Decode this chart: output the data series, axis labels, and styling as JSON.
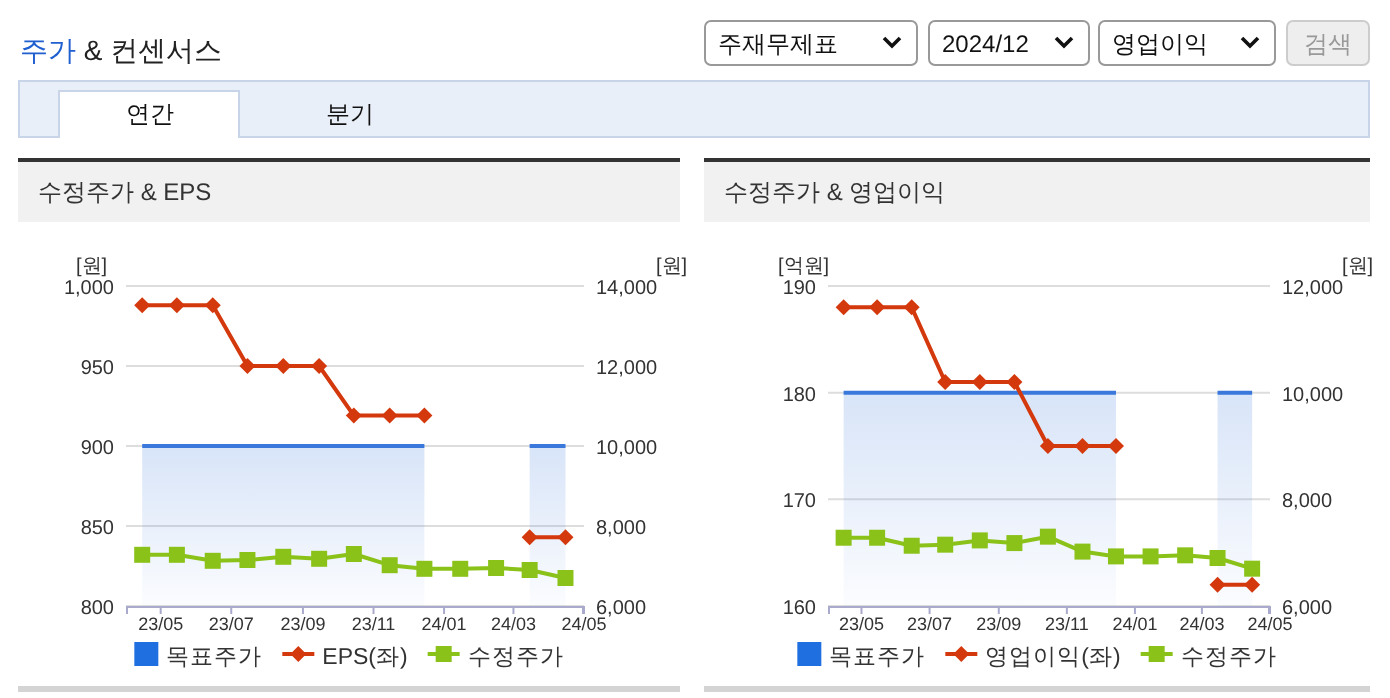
{
  "chart_data": [
    {
      "type": "line",
      "title": "수정주가 & EPS",
      "ylabel": "[원]",
      "y2label": "[원]",
      "annotations": [
        "주가 & 컨센서스",
        "주재무제표",
        "2024/12",
        "영업이익",
        "검색",
        "연간",
        "분기"
      ],
      "x": [
        "2023-04-15",
        "2023-05-15",
        "2023-06-15",
        "2023-07-15",
        "2023-08-15",
        "2023-09-15",
        "2023-10-15",
        "2023-11-15",
        "2023-12-15",
        "2024-01-15",
        "2024-02-15",
        "2024-03-15",
        "2024-04-15"
      ],
      "xlim": [
        "2023-04-01",
        "2024-05-01"
      ],
      "xticks": [
        {
          "value": "2023-05-01",
          "label": "23/05"
        },
        {
          "value": "2023-07-01",
          "label": "23/07"
        },
        {
          "value": "2023-09-01",
          "label": "23/09"
        },
        {
          "value": "2023-11-01",
          "label": "23/11"
        },
        {
          "value": "2024-01-01",
          "label": "24/01"
        },
        {
          "value": "2024-03-01",
          "label": "24/03"
        },
        {
          "value": "2024-05-01",
          "label": "24/05"
        }
      ],
      "ylim": [
        800,
        1000
      ],
      "yticks": [
        800,
        850,
        900,
        950,
        {
          "value": 1000,
          "label": "1,000"
        }
      ],
      "y2lim": [
        6000,
        14000
      ],
      "y2ticks": [
        {
          "value": 6000,
          "label": "6,000"
        },
        {
          "value": 8000,
          "label": "8,000"
        },
        {
          "value": 10000,
          "label": "10,000"
        },
        {
          "value": 12000,
          "label": "12,000"
        },
        {
          "value": 14000,
          "label": "14,000"
        }
      ],
      "grid": "y",
      "legend": "bottom",
      "series": [
        {
          "name": "목표주가",
          "type": "area",
          "axis": "y2",
          "color": "#3a78dc",
          "values": [
            10000,
            10000,
            10000,
            10000,
            10000,
            10000,
            10000,
            10000,
            10000,
            null,
            null,
            10000,
            10000
          ]
        },
        {
          "name": "EPS(좌)",
          "color": "#d4380d",
          "marker": "diamond",
          "values": [
            988,
            988,
            988,
            950,
            950,
            950,
            919,
            919,
            919,
            null,
            null,
            843,
            843
          ]
        },
        {
          "name": "수정주가",
          "axis": "y2",
          "color": "#8bc21a",
          "marker": "square",
          "values": [
            7280,
            7280,
            7130,
            7150,
            7230,
            7180,
            7300,
            7020,
            6930,
            6930,
            6950,
            6900,
            6700
          ]
        }
      ]
    },
    {
      "type": "line",
      "title": "수정주가 & 영업이익",
      "ylabel": "[억원]",
      "y2label": "[원]",
      "x": [
        "2023-04-15",
        "2023-05-15",
        "2023-06-15",
        "2023-07-15",
        "2023-08-15",
        "2023-09-15",
        "2023-10-15",
        "2023-11-15",
        "2023-12-15",
        "2024-01-15",
        "2024-02-15",
        "2024-03-15",
        "2024-04-15"
      ],
      "xlim": [
        "2023-04-01",
        "2024-05-01"
      ],
      "xticks": [
        {
          "value": "2023-05-01",
          "label": "23/05"
        },
        {
          "value": "2023-07-01",
          "label": "23/07"
        },
        {
          "value": "2023-09-01",
          "label": "23/09"
        },
        {
          "value": "2023-11-01",
          "label": "23/11"
        },
        {
          "value": "2024-01-01",
          "label": "24/01"
        },
        {
          "value": "2024-03-01",
          "label": "24/03"
        },
        {
          "value": "2024-05-01",
          "label": "24/05"
        }
      ],
      "ylim": [
        160,
        190
      ],
      "yticks": [
        160,
        170,
        180,
        190
      ],
      "y2lim": [
        6000,
        12000
      ],
      "y2ticks": [
        {
          "value": 6000,
          "label": "6,000"
        },
        {
          "value": 8000,
          "label": "8,000"
        },
        {
          "value": 10000,
          "label": "10,000"
        },
        {
          "value": 12000,
          "label": "12,000"
        }
      ],
      "grid": "y",
      "legend": "bottom",
      "series": [
        {
          "name": "목표주가",
          "type": "area",
          "axis": "y2",
          "color": "#3a78dc",
          "values": [
            10000,
            10000,
            10000,
            10000,
            10000,
            10000,
            10000,
            10000,
            10000,
            null,
            null,
            10000,
            10000
          ]
        },
        {
          "name": "영업이익(좌)",
          "color": "#d4380d",
          "marker": "diamond",
          "values": [
            188,
            188,
            188,
            181,
            181,
            181,
            175,
            175,
            175,
            null,
            null,
            162,
            162
          ]
        },
        {
          "name": "수정주가",
          "axis": "y2",
          "color": "#8bc21a",
          "marker": "square",
          "values": [
            7280,
            7280,
            7130,
            7150,
            7230,
            7180,
            7300,
            7020,
            6930,
            6930,
            6950,
            6900,
            6700
          ]
        }
      ]
    }
  ]
}
